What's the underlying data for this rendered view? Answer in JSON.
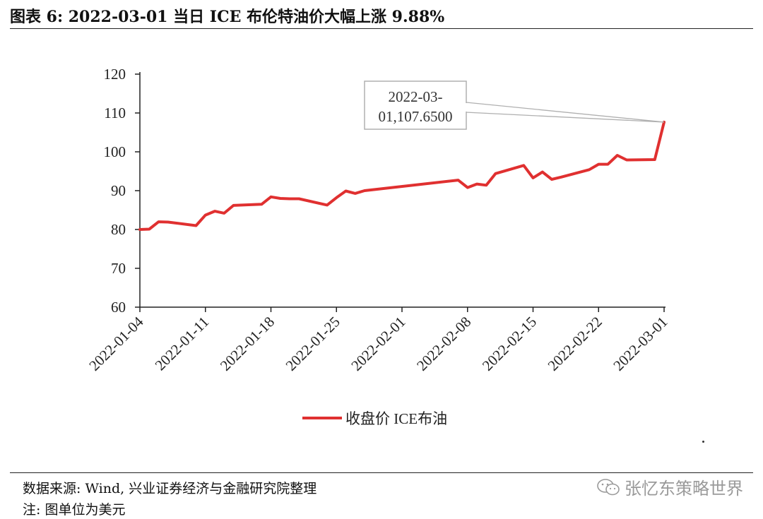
{
  "header": {
    "title": "图表 6:  2022-03-01  当日 ICE 布伦特油价大幅上涨 9.88%"
  },
  "footer": {
    "source": "数据来源: Wind, 兴业证券经济与金融研究院整理",
    "note": "注: 图单位为美元",
    "watermark_text": "张忆东策略世界",
    "watermark_icon": "wechat-icon"
  },
  "colors": {
    "series": "#e03030",
    "axis": "#222222",
    "callout_border": "#b0b0b0",
    "watermark": "#9a9a9a"
  },
  "chart_data": {
    "type": "line",
    "title": "",
    "xlabel": "",
    "ylabel": "",
    "ylim": [
      60,
      120
    ],
    "yticks": [
      60,
      70,
      80,
      90,
      100,
      110,
      120
    ],
    "x_range": [
      "2022-01-04",
      "2022-03-01"
    ],
    "xtick_labels": [
      "2022-01-04",
      "2022-01-11",
      "2022-01-18",
      "2022-01-25",
      "2022-02-01",
      "2022-02-08",
      "2022-02-15",
      "2022-02-22",
      "2022-03-01"
    ],
    "legend": "bottom-center",
    "series": [
      {
        "name": "收盘价 ICE布油",
        "color": "#e03030",
        "x": [
          "2022-01-04",
          "2022-01-05",
          "2022-01-06",
          "2022-01-07",
          "2022-01-10",
          "2022-01-11",
          "2022-01-12",
          "2022-01-13",
          "2022-01-14",
          "2022-01-17",
          "2022-01-18",
          "2022-01-19",
          "2022-01-20",
          "2022-01-21",
          "2022-01-24",
          "2022-01-25",
          "2022-01-26",
          "2022-01-27",
          "2022-01-28",
          "2022-02-07",
          "2022-02-08",
          "2022-02-09",
          "2022-02-10",
          "2022-02-11",
          "2022-02-14",
          "2022-02-15",
          "2022-02-16",
          "2022-02-17",
          "2022-02-18",
          "2022-02-21",
          "2022-02-22",
          "2022-02-23",
          "2022-02-24",
          "2022-02-25",
          "2022-02-28",
          "2022-03-01"
        ],
        "values": [
          80.0,
          80.1,
          81.99,
          81.9,
          81.0,
          83.7,
          84.7,
          84.2,
          86.2,
          86.5,
          88.4,
          88.0,
          87.9,
          87.9,
          86.3,
          88.2,
          89.9,
          89.3,
          90.0,
          92.7,
          90.8,
          91.7,
          91.4,
          94.4,
          96.5,
          93.3,
          94.8,
          92.9,
          93.5,
          95.4,
          96.8,
          96.8,
          99.1,
          97.9,
          98.0,
          107.65
        ]
      }
    ],
    "annotation": {
      "x": "2022-03-01",
      "y": 107.65,
      "text_line1": "2022-03-",
      "text_line2": "01,107.6500"
    }
  }
}
